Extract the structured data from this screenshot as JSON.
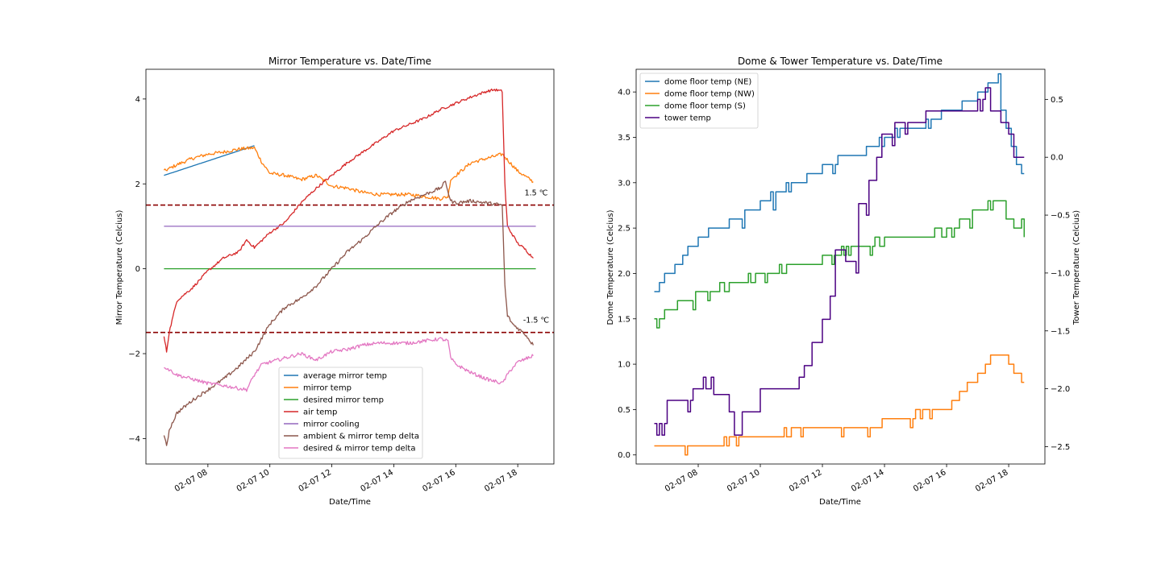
{
  "chart_data": [
    {
      "type": "line",
      "title": "Mirror Temperature vs. Date/Time",
      "xlabel": "Date/Time",
      "ylabel": "Mirror Temperature (Celcius)",
      "xticks": [
        "02-07 08",
        "02-07 10",
        "02-07 12",
        "02-07 14",
        "02-07 16",
        "02-07 18"
      ],
      "xlim": [
        "02-07 06:00",
        "02-07 19:10"
      ],
      "ylim": [
        -4.6,
        4.7
      ],
      "yticks": [
        -4,
        -2,
        0,
        2,
        4
      ],
      "legend_position": "lower center",
      "threshold_lines": [
        {
          "value": 1.5,
          "label": "1.5 ℃",
          "color": "#8b0000",
          "style": "dashed"
        },
        {
          "value": -1.5,
          "label": "-1.5 ℃",
          "color": "#8b0000",
          "style": "dashed"
        }
      ],
      "series": [
        {
          "name": "average mirror temp",
          "color": "#1f77b4",
          "x": [
            "06:35",
            "09:30"
          ],
          "y": [
            2.2,
            2.9
          ]
        },
        {
          "name": "mirror temp",
          "color": "#ff7f0e",
          "noise": 0.04,
          "x": [
            "06:35",
            "07:00",
            "07:30",
            "08:00",
            "08:30",
            "09:00",
            "09:30",
            "09:45",
            "10:00",
            "10:30",
            "11:00",
            "11:30",
            "12:00",
            "12:30",
            "13:00",
            "13:30",
            "14:00",
            "14:30",
            "15:00",
            "15:30",
            "15:45",
            "15:50",
            "16:00",
            "16:30",
            "17:00",
            "17:30",
            "17:45",
            "18:00",
            "18:30"
          ],
          "y": [
            2.3,
            2.45,
            2.6,
            2.7,
            2.75,
            2.82,
            2.85,
            2.5,
            2.25,
            2.2,
            2.1,
            2.2,
            1.95,
            1.9,
            1.8,
            1.75,
            1.75,
            1.75,
            1.7,
            1.65,
            1.7,
            2.1,
            2.2,
            2.5,
            2.6,
            2.7,
            2.5,
            2.3,
            2.05
          ]
        },
        {
          "name": "desired mirror temp",
          "color": "#2ca02c",
          "x": [
            "06:35",
            "18:35"
          ],
          "y": [
            0,
            0
          ]
        },
        {
          "name": "air temp",
          "color": "#d62728",
          "noise": 0.03,
          "x": [
            "06:35",
            "06:40",
            "06:45",
            "07:00",
            "07:30",
            "08:00",
            "08:30",
            "09:00",
            "09:15",
            "09:30",
            "10:00",
            "10:30",
            "11:00",
            "11:30",
            "12:00",
            "12:30",
            "13:00",
            "13:30",
            "14:00",
            "14:30",
            "15:00",
            "15:30",
            "16:00",
            "16:30",
            "17:00",
            "17:15",
            "17:30",
            "17:35",
            "17:40",
            "17:50",
            "18:00",
            "18:15",
            "18:30"
          ],
          "y": [
            -1.6,
            -1.95,
            -1.5,
            -0.75,
            -0.45,
            -0.05,
            0.25,
            0.4,
            0.68,
            0.5,
            0.85,
            1.1,
            1.55,
            1.9,
            2.2,
            2.5,
            2.75,
            3.0,
            3.25,
            3.4,
            3.55,
            3.75,
            3.9,
            4.05,
            4.18,
            4.22,
            4.18,
            2.0,
            1.0,
            0.8,
            0.6,
            0.45,
            0.25
          ]
        },
        {
          "name": "mirror cooling",
          "color": "#9467bd",
          "x": [
            "06:35",
            "18:35"
          ],
          "y": [
            1,
            1
          ]
        },
        {
          "name": "ambient & mirror temp delta",
          "color": "#8c564b",
          "noise": 0.04,
          "x": [
            "06:35",
            "06:40",
            "06:45",
            "07:00",
            "07:30",
            "08:00",
            "08:30",
            "09:00",
            "09:30",
            "10:00",
            "10:30",
            "11:00",
            "11:30",
            "12:00",
            "12:30",
            "13:00",
            "13:30",
            "14:00",
            "14:30",
            "15:00",
            "15:30",
            "15:40",
            "15:50",
            "16:00",
            "16:30",
            "17:00",
            "17:30",
            "17:35",
            "17:40",
            "17:50",
            "18:00",
            "18:15",
            "18:30"
          ],
          "y": [
            -3.9,
            -4.2,
            -3.8,
            -3.4,
            -3.1,
            -2.85,
            -2.6,
            -2.3,
            -1.95,
            -1.3,
            -0.9,
            -0.7,
            -0.4,
            0.0,
            0.4,
            0.7,
            1.05,
            1.35,
            1.6,
            1.75,
            1.9,
            2.05,
            1.6,
            1.55,
            1.6,
            1.55,
            1.5,
            -0.4,
            -1.1,
            -1.3,
            -1.4,
            -1.55,
            -1.8
          ]
        },
        {
          "name": "desired & mirror temp delta",
          "color": "#e377c2",
          "noise": 0.04,
          "x": [
            "06:35",
            "07:00",
            "07:30",
            "08:00",
            "08:30",
            "09:00",
            "09:15",
            "09:30",
            "09:45",
            "10:00",
            "10:30",
            "11:00",
            "11:30",
            "12:00",
            "12:30",
            "13:00",
            "13:30",
            "14:00",
            "14:30",
            "15:00",
            "15:30",
            "15:45",
            "15:50",
            "16:00",
            "16:30",
            "17:00",
            "17:30",
            "17:45",
            "18:00",
            "18:30"
          ],
          "y": [
            -2.3,
            -2.5,
            -2.6,
            -2.7,
            -2.75,
            -2.82,
            -2.85,
            -2.5,
            -2.25,
            -2.2,
            -2.1,
            -2.0,
            -2.15,
            -1.95,
            -1.9,
            -1.8,
            -1.75,
            -1.75,
            -1.75,
            -1.7,
            -1.65,
            -1.7,
            -2.1,
            -2.25,
            -2.45,
            -2.6,
            -2.7,
            -2.4,
            -2.2,
            -2.05
          ]
        }
      ]
    },
    {
      "type": "line",
      "title": "Dome & Tower Temperature vs. Date/Time",
      "xlabel": "Date/Time",
      "ylabel": "Dome Temperature (Celcius)",
      "y2label": "Tower Temperature (Celcius)",
      "xticks": [
        "02-07 08",
        "02-07 10",
        "02-07 12",
        "02-07 14",
        "02-07 16",
        "02-07 18"
      ],
      "xlim": [
        "02-07 06:00",
        "02-07 19:10"
      ],
      "ylim": [
        -0.1,
        4.25
      ],
      "yticks": [
        0.0,
        0.5,
        1.0,
        1.5,
        2.0,
        2.5,
        3.0,
        3.5,
        4.0
      ],
      "y2lim": [
        -2.65,
        0.76
      ],
      "y2ticks": [
        -2.5,
        -2.0,
        -1.5,
        -1.0,
        -0.5,
        0.0,
        0.5
      ],
      "legend_position": "upper left",
      "series": [
        {
          "name": "dome floor temp (NE)",
          "color": "#1f77b4",
          "axis": "left",
          "step": true,
          "flicker": 0.1,
          "x": [
            "06:35",
            "06:45",
            "07:00",
            "07:15",
            "07:30",
            "07:45",
            "08:00",
            "08:30",
            "09:00",
            "09:30",
            "10:00",
            "10:30",
            "11:00",
            "11:30",
            "12:00",
            "12:30",
            "13:00",
            "13:30",
            "14:00",
            "14:30",
            "15:00",
            "15:30",
            "16:00",
            "16:30",
            "17:00",
            "17:30",
            "17:45",
            "17:55",
            "18:05",
            "18:15",
            "18:30"
          ],
          "y": [
            1.8,
            1.9,
            2.0,
            2.1,
            2.2,
            2.3,
            2.4,
            2.5,
            2.6,
            2.7,
            2.8,
            2.9,
            3.0,
            3.1,
            3.2,
            3.3,
            3.3,
            3.4,
            3.5,
            3.6,
            3.6,
            3.7,
            3.8,
            3.9,
            4.0,
            4.1,
            3.8,
            3.6,
            3.4,
            3.2,
            3.1
          ]
        },
        {
          "name": "dome floor temp (NW)",
          "color": "#ff7f0e",
          "axis": "left",
          "step": true,
          "flicker": 0.1,
          "x": [
            "06:35",
            "08:30",
            "09:00",
            "10:00",
            "11:00",
            "12:00",
            "13:00",
            "14:00",
            "14:40",
            "15:00",
            "16:00",
            "16:10",
            "16:30",
            "16:45",
            "17:00",
            "17:15",
            "17:30",
            "17:45",
            "18:00",
            "18:15",
            "18:30"
          ],
          "y": [
            0.1,
            0.1,
            0.2,
            0.2,
            0.3,
            0.3,
            0.3,
            0.4,
            0.4,
            0.5,
            0.5,
            0.6,
            0.7,
            0.8,
            0.9,
            1.0,
            1.1,
            1.1,
            1.0,
            0.9,
            0.8
          ]
        },
        {
          "name": "dome floor temp (S)",
          "color": "#2ca02c",
          "axis": "left",
          "step": true,
          "flicker": 0.1,
          "x": [
            "06:35",
            "07:00",
            "07:30",
            "08:00",
            "09:00",
            "10:00",
            "11:00",
            "12:00",
            "13:00",
            "14:00",
            "15:00",
            "16:00",
            "16:30",
            "17:00",
            "17:30",
            "17:45",
            "18:00",
            "18:15",
            "18:30"
          ],
          "y": [
            1.5,
            1.6,
            1.7,
            1.8,
            1.9,
            2.0,
            2.1,
            2.2,
            2.3,
            2.4,
            2.4,
            2.5,
            2.6,
            2.7,
            2.8,
            2.8,
            2.6,
            2.5,
            2.4
          ]
        },
        {
          "name": "tower temp",
          "color": "#4b0082",
          "axis": "right",
          "step": true,
          "flicker": 0.1,
          "x": [
            "06:35",
            "07:00",
            "07:30",
            "08:00",
            "08:30",
            "09:00",
            "09:15",
            "09:30",
            "10:00",
            "10:30",
            "11:00",
            "11:15",
            "11:30",
            "11:45",
            "12:00",
            "12:15",
            "12:30",
            "12:45",
            "13:00",
            "13:15",
            "13:30",
            "13:45",
            "14:00",
            "14:30",
            "15:00",
            "15:30",
            "16:00",
            "16:30",
            "17:00",
            "17:15",
            "17:30",
            "17:45",
            "18:00",
            "18:15",
            "18:30"
          ],
          "y": [
            -2.3,
            -2.1,
            -2.1,
            -2.0,
            -2.05,
            -2.2,
            -2.4,
            -2.2,
            -2.0,
            -2.0,
            -2.0,
            -1.9,
            -1.8,
            -1.6,
            -1.4,
            -1.2,
            -0.8,
            -0.9,
            -0.9,
            -0.4,
            -0.2,
            0.0,
            0.2,
            0.3,
            0.3,
            0.4,
            0.4,
            0.4,
            0.5,
            0.6,
            0.4,
            0.3,
            0.2,
            0.0,
            0.0
          ]
        }
      ]
    }
  ]
}
